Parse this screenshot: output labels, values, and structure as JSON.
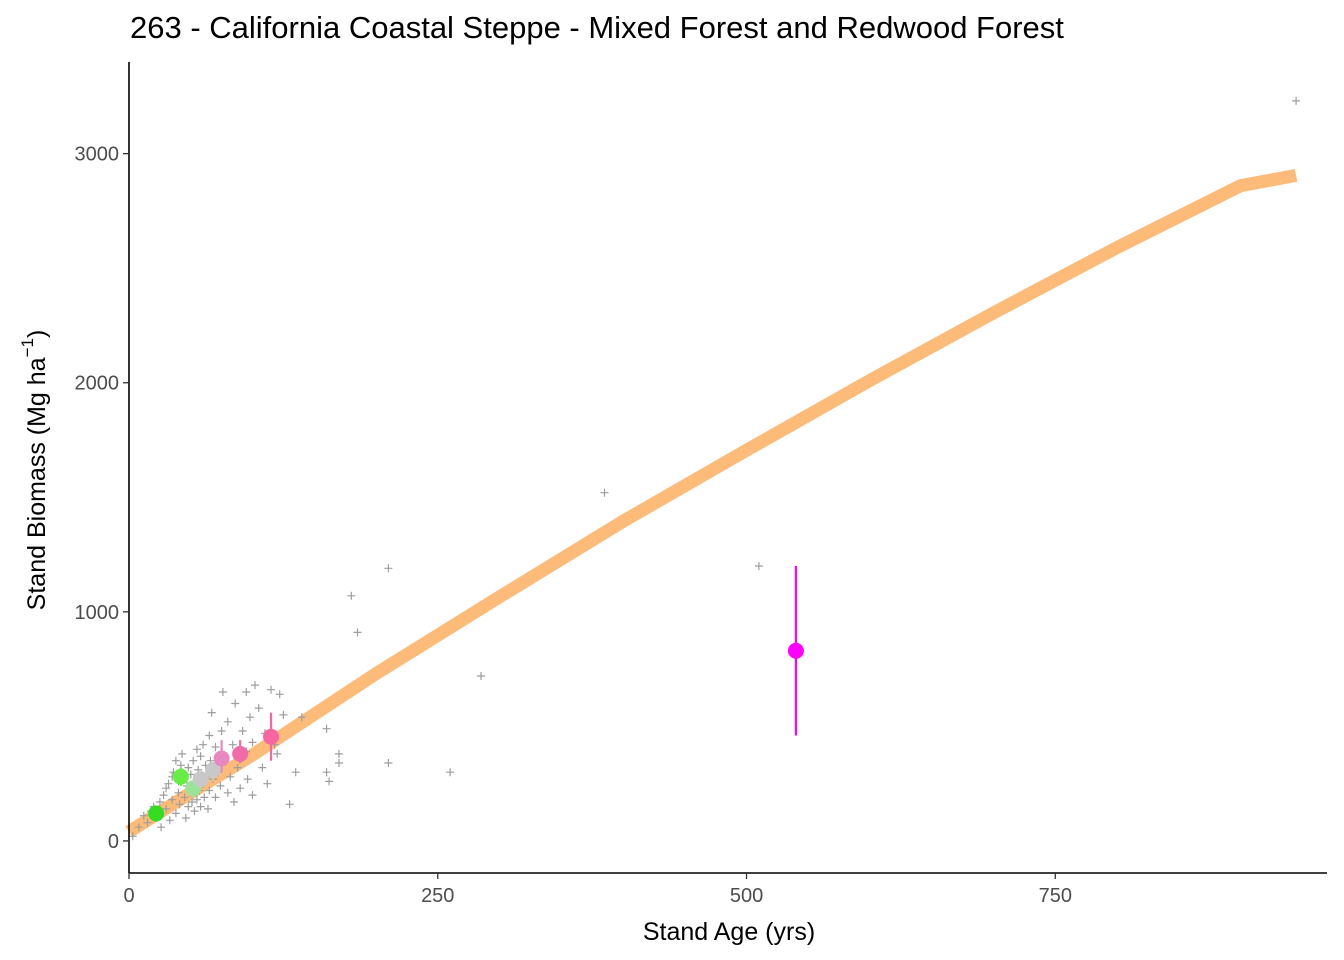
{
  "chart_data": {
    "type": "scatter",
    "title": "263 - California Coastal Steppe - Mixed Forest and Redwood Forest",
    "xlabel": "Stand Age (yrs)",
    "ylabel_main": "Stand Biomass (Mg ha",
    "ylabel_sup": "−1",
    "ylabel_close": ")",
    "xlim": [
      0,
      970
    ],
    "ylim": [
      -140,
      3400
    ],
    "xticks": [
      0,
      250,
      500,
      750
    ],
    "yticks": [
      0,
      1000,
      2000,
      3000
    ],
    "grid": false,
    "fit_curve": {
      "color": "#FDBB7A",
      "x": [
        0,
        50,
        100,
        200,
        300,
        400,
        500,
        600,
        700,
        800,
        900,
        945
      ],
      "y": [
        40,
        210,
        375,
        730,
        1065,
        1395,
        1705,
        2010,
        2305,
        2590,
        2860,
        2905
      ]
    },
    "raw_points": {
      "color": "#9e9e9e",
      "x": [
        3,
        8,
        12,
        15,
        18,
        20,
        22,
        25,
        26,
        28,
        30,
        30,
        32,
        33,
        35,
        35,
        36,
        38,
        38,
        40,
        40,
        41,
        42,
        43,
        45,
        45,
        46,
        47,
        48,
        48,
        50,
        50,
        51,
        52,
        53,
        54,
        55,
        55,
        56,
        57,
        58,
        58,
        60,
        60,
        61,
        62,
        63,
        64,
        65,
        65,
        66,
        67,
        68,
        70,
        70,
        72,
        74,
        75,
        76,
        78,
        80,
        80,
        82,
        84,
        85,
        86,
        88,
        90,
        92,
        95,
        95,
        96,
        98,
        100,
        100,
        102,
        105,
        108,
        110,
        112,
        115,
        118,
        120,
        122,
        125,
        130,
        135,
        140,
        160,
        160,
        162,
        170,
        170,
        180,
        185,
        210,
        210,
        260,
        285,
        385,
        510,
        945
      ],
      "y": [
        20,
        60,
        110,
        80,
        130,
        150,
        100,
        170,
        60,
        200,
        230,
        140,
        250,
        90,
        280,
        180,
        300,
        120,
        350,
        210,
        260,
        160,
        330,
        380,
        190,
        280,
        100,
        240,
        320,
        150,
        210,
        290,
        170,
        350,
        130,
        260,
        400,
        180,
        310,
        220,
        150,
        370,
        250,
        420,
        190,
        330,
        280,
        140,
        460,
        220,
        350,
        560,
        270,
        190,
        410,
        300,
        240,
        480,
        650,
        360,
        210,
        520,
        280,
        420,
        170,
        600,
        320,
        230,
        480,
        650,
        390,
        270,
        540,
        200,
        430,
        680,
        580,
        320,
        470,
        250,
        660,
        420,
        380,
        640,
        550,
        160,
        300,
        540,
        490,
        300,
        260,
        380,
        340,
        1070,
        910,
        1190,
        340,
        300,
        720,
        1520,
        1200,
        3230
      ]
    },
    "mean_points": [
      {
        "x": 22,
        "y": 120,
        "lo": 90,
        "hi": 145,
        "color": "#33DD22"
      },
      {
        "x": 42,
        "y": 280,
        "lo": 240,
        "hi": 320,
        "color": "#66EE44"
      },
      {
        "x": 52,
        "y": 230,
        "lo": 190,
        "hi": 260,
        "color": "#99E499"
      },
      {
        "x": 58,
        "y": 270,
        "lo": 230,
        "hi": 300,
        "color": "#C8C8C8"
      },
      {
        "x": 68,
        "y": 310,
        "lo": 260,
        "hi": 340,
        "color": "#C8C8C8"
      },
      {
        "x": 75,
        "y": 360,
        "lo": 300,
        "hi": 440,
        "color": "#E888C0"
      },
      {
        "x": 90,
        "y": 380,
        "lo": 340,
        "hi": 440,
        "color": "#F06BAA"
      },
      {
        "x": 115,
        "y": 455,
        "lo": 350,
        "hi": 560,
        "color": "#F766A0"
      },
      {
        "x": 540,
        "y": 830,
        "lo": 460,
        "hi": 1200,
        "color": "#FF00FF"
      }
    ]
  }
}
